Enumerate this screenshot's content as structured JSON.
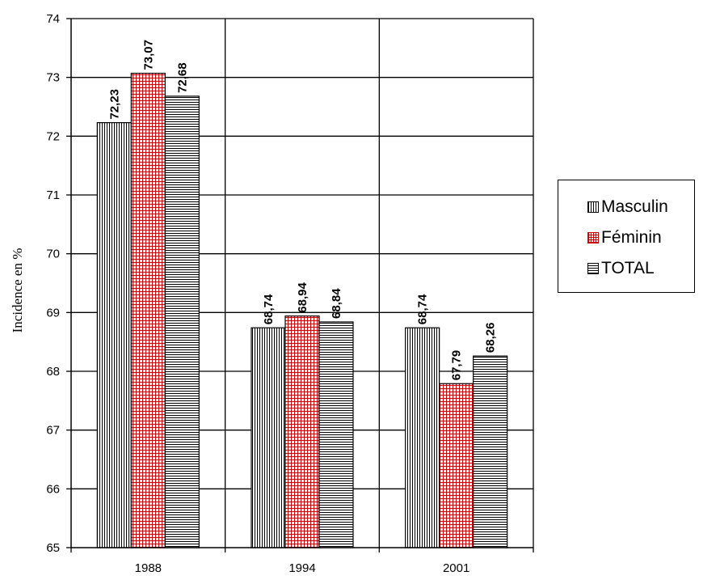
{
  "chart_data": {
    "type": "bar",
    "title": "",
    "xlabel": "",
    "ylabel": "Incidence en %",
    "categories": [
      "1988",
      "1994",
      "2001"
    ],
    "series": [
      {
        "name": "Masculin",
        "values": [
          72.23,
          68.74,
          68.74
        ],
        "labels": [
          "72,23",
          "68,74",
          "68,74"
        ],
        "pattern": "vertical-lines",
        "color": "#000000"
      },
      {
        "name": "Féminin",
        "values": [
          73.07,
          68.94,
          67.79
        ],
        "labels": [
          "73,07",
          "68,94",
          "67,79"
        ],
        "pattern": "grid",
        "color": "#cc0000"
      },
      {
        "name": "TOTAL",
        "values": [
          72.68,
          68.84,
          68.26
        ],
        "labels": [
          "72,68",
          "68,84",
          "68,26"
        ],
        "pattern": "horizontal-lines",
        "color": "#000000"
      }
    ],
    "ylim": [
      65,
      74
    ],
    "yticks": [
      "65",
      "66",
      "67",
      "68",
      "69",
      "70",
      "71",
      "72",
      "73",
      "74"
    ],
    "grid": true,
    "legend_position": "right"
  }
}
